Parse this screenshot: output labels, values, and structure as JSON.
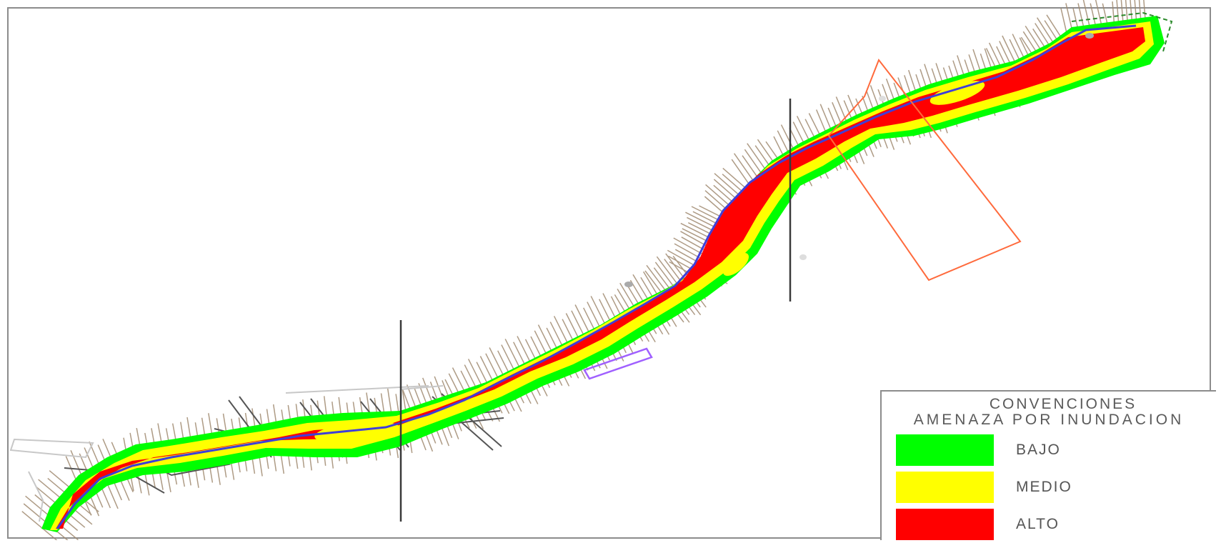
{
  "legend": {
    "title_line1": "CONVENCIONES",
    "title_line2": "AMENAZA POR INUNDACION",
    "items": [
      {
        "label": "BAJO",
        "color": "#00ff00"
      },
      {
        "label": "MEDIO",
        "color": "#ffff00"
      },
      {
        "label": "ALTO",
        "color": "#ff0000"
      }
    ]
  },
  "colors": {
    "low": "#00ff00",
    "medium": "#ffff00",
    "high": "#ff0000",
    "channel": "#3f3fd8",
    "contours": "#a08a70",
    "polygon_orange": "#ff6a3c",
    "polygon_purple": "#a060ff",
    "section_lines": "#3a3a3a"
  }
}
